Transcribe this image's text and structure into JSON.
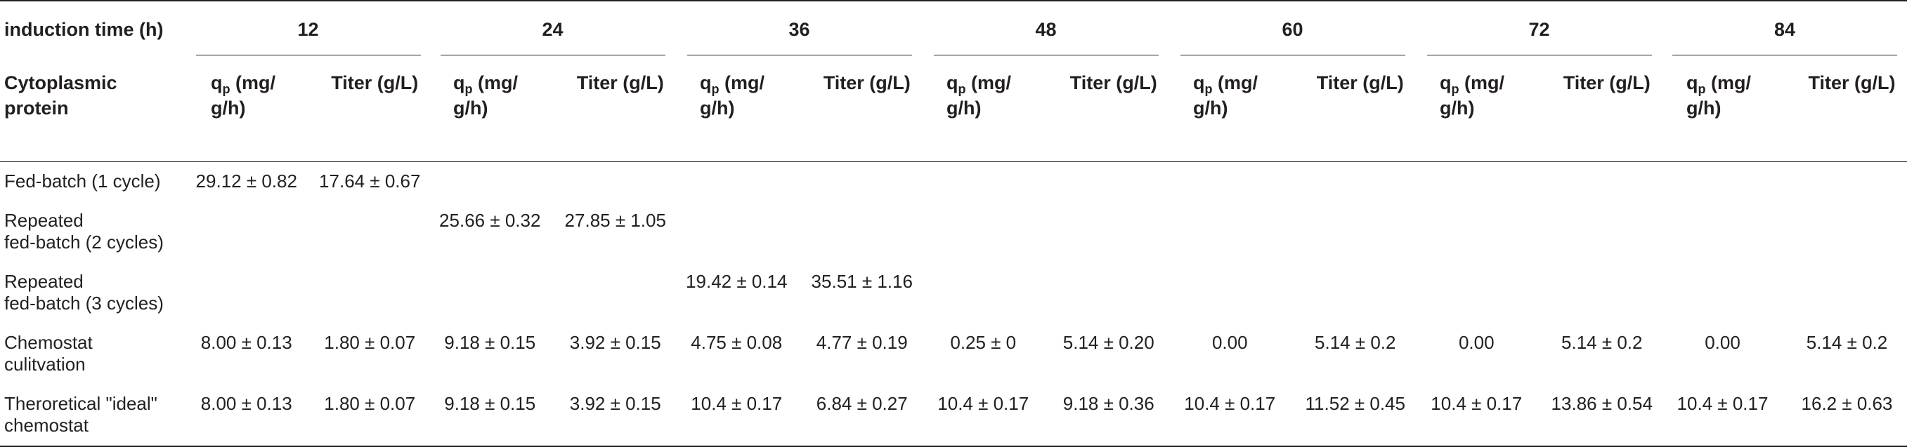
{
  "header": {
    "first_col": "induction time (h)",
    "times": [
      "12",
      "24",
      "36",
      "48",
      "60",
      "72",
      "84"
    ]
  },
  "subheader": {
    "first_col_line1": "Cytoplasmic",
    "first_col_line2": "protein",
    "qp_main": "q",
    "qp_sub": "p",
    "qp_unit_line1": " (mg/",
    "qp_unit_line2": "g/h)",
    "titer": "Titer (g/L)"
  },
  "rows": [
    {
      "label_line1": "Fed-batch (1 cycle)",
      "label_line2": "",
      "values": [
        [
          "29.12 ± 0.82",
          "17.64 ± 0.67"
        ],
        [
          "",
          ""
        ],
        [
          "",
          ""
        ],
        [
          "",
          ""
        ],
        [
          "",
          ""
        ],
        [
          "",
          ""
        ],
        [
          "",
          ""
        ]
      ]
    },
    {
      "label_line1": "Repeated",
      "label_line2": "fed-batch (2 cycles)",
      "values": [
        [
          "",
          ""
        ],
        [
          "25.66 ± 0.32",
          "27.85 ± 1.05"
        ],
        [
          "",
          ""
        ],
        [
          "",
          ""
        ],
        [
          "",
          ""
        ],
        [
          "",
          ""
        ],
        [
          "",
          ""
        ]
      ]
    },
    {
      "label_line1": "Repeated",
      "label_line2": "fed-batch (3 cycles)",
      "values": [
        [
          "",
          ""
        ],
        [
          "",
          ""
        ],
        [
          "19.42 ± 0.14",
          "35.51 ± 1.16"
        ],
        [
          "",
          ""
        ],
        [
          "",
          ""
        ],
        [
          "",
          ""
        ],
        [
          "",
          ""
        ]
      ]
    },
    {
      "label_line1": "Chemostat",
      "label_line2": "culitvation",
      "values": [
        [
          "8.00 ± 0.13",
          "1.80 ± 0.07"
        ],
        [
          "9.18 ± 0.15",
          "3.92 ± 0.15"
        ],
        [
          "4.75 ± 0.08",
          "4.77 ± 0.19"
        ],
        [
          "0.25 ± 0",
          "5.14 ± 0.20"
        ],
        [
          "0.00",
          "5.14 ± 0.2"
        ],
        [
          "0.00",
          "5.14 ± 0.2"
        ],
        [
          "0.00",
          "5.14 ± 0.2"
        ]
      ]
    },
    {
      "label_line1": "Theroretical \"ideal\"",
      "label_line2": "chemostat",
      "values": [
        [
          "8.00 ± 0.13",
          "1.80 ± 0.07"
        ],
        [
          "9.18 ± 0.15",
          "3.92 ± 0.15"
        ],
        [
          "10.4 ± 0.17",
          "6.84 ± 0.27"
        ],
        [
          "10.4 ± 0.17",
          "9.18 ± 0.36"
        ],
        [
          "10.4 ± 0.17",
          "11.52 ± 0.45"
        ],
        [
          "10.4 ± 0.17",
          "13.86 ± 0.54"
        ],
        [
          "10.4 ± 0.17",
          "16.2 ± 0.63"
        ]
      ]
    }
  ]
}
